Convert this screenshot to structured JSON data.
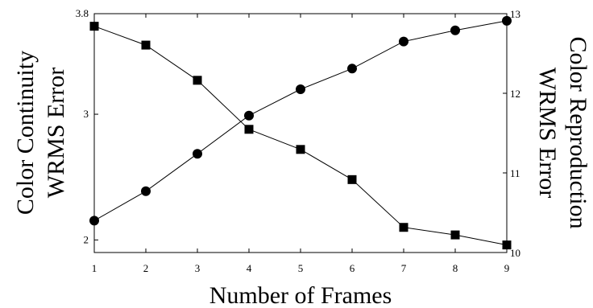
{
  "chart_data": {
    "type": "line",
    "xlabel": "Number of Frames",
    "ylabel_left": [
      "Color Continuity",
      "WRMS Error"
    ],
    "ylabel_right": [
      "Color Reproduction",
      "WRMS Error"
    ],
    "x": [
      1,
      2,
      3,
      4,
      5,
      6,
      7,
      8,
      9
    ],
    "xlim": [
      1,
      9
    ],
    "x_ticks": [
      "1",
      "2",
      "3",
      "4",
      "5",
      "6",
      "7",
      "8",
      "9"
    ],
    "ylim_left": [
      1.9,
      3.8
    ],
    "y_ticks_left": [
      {
        "value": 2,
        "label": "2"
      },
      {
        "value": 3,
        "label": "3"
      },
      {
        "value": 3.8,
        "label": "3.8"
      }
    ],
    "ylim_right": [
      10,
      13
    ],
    "y_ticks_right": [
      {
        "value": 10,
        "label": "10"
      },
      {
        "value": 11,
        "label": "11"
      },
      {
        "value": 12,
        "label": "12"
      },
      {
        "value": 13,
        "label": "13"
      }
    ],
    "grid": false,
    "legend": "none",
    "series": [
      {
        "axis": "left",
        "marker": "square",
        "color": "#000000",
        "values": [
          3.7,
          3.55,
          3.27,
          2.88,
          2.72,
          2.48,
          2.1,
          2.04,
          1.96
        ]
      },
      {
        "axis": "right",
        "marker": "circle",
        "color": "#000000",
        "values": [
          10.4,
          10.77,
          11.24,
          11.72,
          12.05,
          12.31,
          12.65,
          12.79,
          12.91
        ]
      }
    ]
  }
}
